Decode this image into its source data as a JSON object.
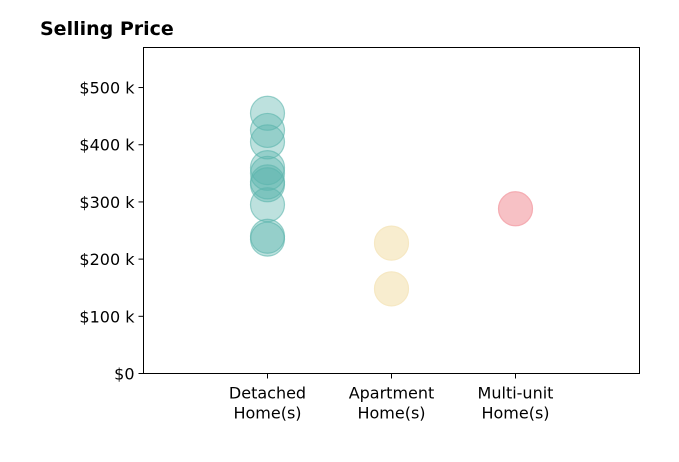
{
  "chart_data": {
    "type": "scatter",
    "title": "Selling Price",
    "xlabel": "",
    "ylabel": "",
    "categories": [
      [
        "Detached",
        "Home(s)"
      ],
      [
        "Apartment",
        "Home(s)"
      ],
      [
        "Multi-unit",
        "Home(s)"
      ]
    ],
    "ylim": [
      0,
      570000
    ],
    "yticks": [
      0,
      100000,
      200000,
      300000,
      400000,
      500000
    ],
    "ytick_labels": [
      "$0",
      "$100 k",
      "$200 k",
      "$300 k",
      "$400 k",
      "$500 k"
    ],
    "grid": false,
    "series": [
      {
        "category_index": 0,
        "color": "#5ab4ac",
        "opacity": 0.4,
        "values": [
          455000,
          425000,
          405000,
          360000,
          350000,
          335000,
          330000,
          295000,
          240000,
          235000
        ]
      },
      {
        "category_index": 1,
        "color": "#f6e8c3",
        "opacity": 0.8,
        "values": [
          228000,
          148000
        ]
      },
      {
        "category_index": 2,
        "color": "#f4a6ad",
        "opacity": 0.7,
        "values": [
          288000
        ]
      }
    ]
  }
}
